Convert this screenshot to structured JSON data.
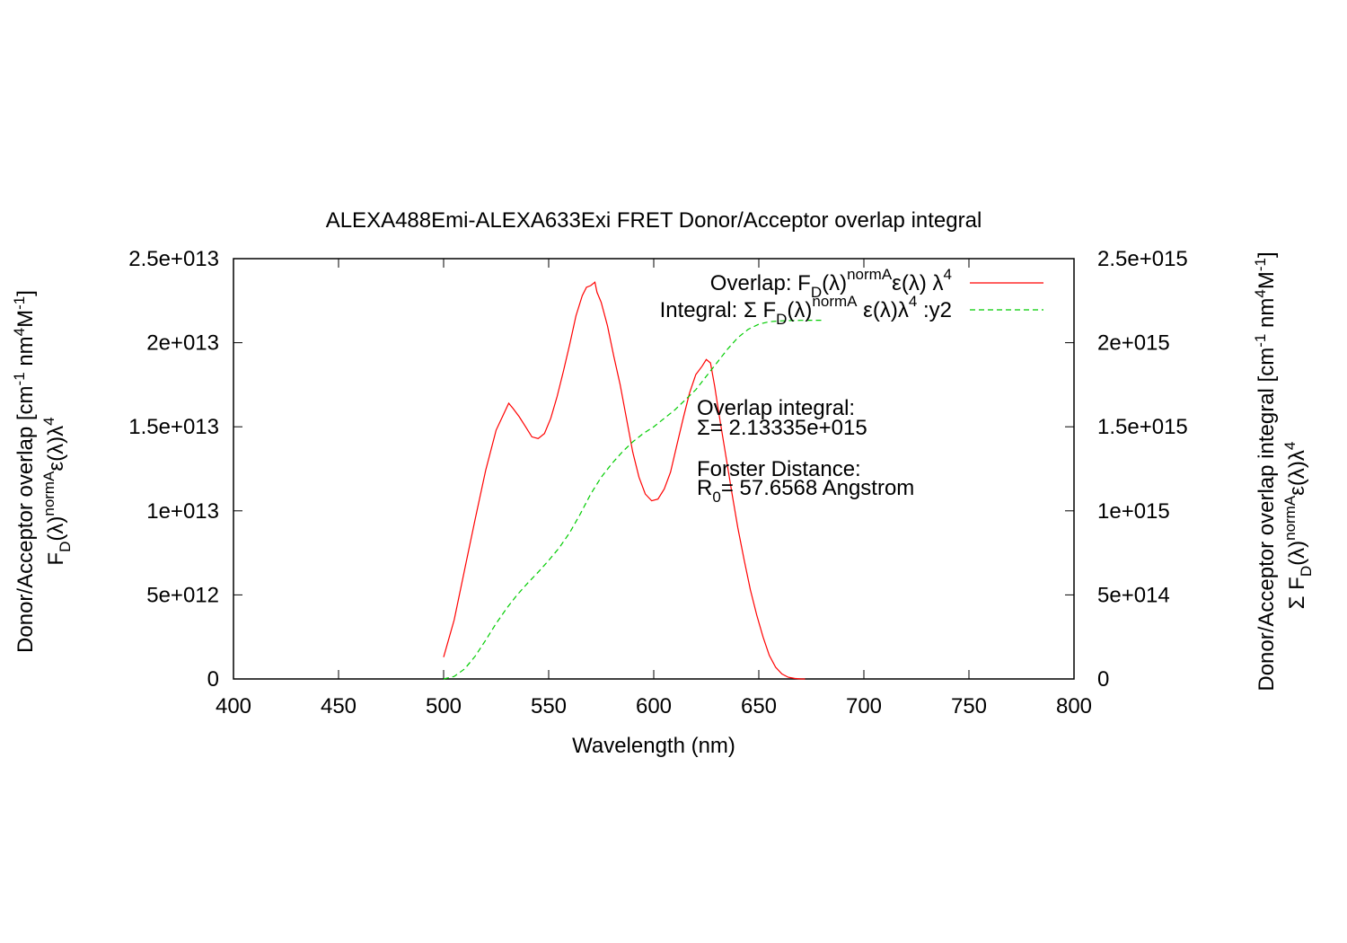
{
  "colors": {
    "background": "#ffffff",
    "axis": "#000000",
    "overlap_series": "#ff0000",
    "integral_series": "#00cc00"
  },
  "chart_data": {
    "type": "line",
    "title": "ALEXA488Emi-ALEXA633Exi FRET Donor/Acceptor overlap integral",
    "xlabel": "Wavelength (nm)",
    "ylabel_left": {
      "line1": "Donor/Acceptor overlap [cm",
      "line1_sup1": "-1",
      "line1_mid": " nm",
      "line1_sup2": "4",
      "line1_end": "M",
      "line1_sup3": "-1",
      "line1_close": "]",
      "line2_main": "F",
      "line2_sub": "D",
      "line2_after": "(λ)",
      "line2_sup": "normA",
      "line2_eps": "ε(λ)λ",
      "line2_sup2": "4"
    },
    "ylabel_right": {
      "line1": "Donor/Acceptor overlap integral [cm",
      "line1_sup1": "-1",
      "line1_mid": " nm",
      "line1_sup2": "4",
      "line1_end": "M",
      "line1_sup3": "-1",
      "line1_close": "]",
      "line2_main": "Σ F",
      "line2_sub": "D",
      "line2_after": "(λ)",
      "line2_sup": "normA",
      "line2_eps": "ε(λ)λ",
      "line2_sup2": "4"
    },
    "xlim": [
      400,
      800
    ],
    "ylim_left": [
      0,
      25000000000000.0
    ],
    "ylim_right": [
      0,
      2500000000000000.0
    ],
    "x_ticks": [
      400,
      450,
      500,
      550,
      600,
      650,
      700,
      750,
      800
    ],
    "x_tick_labels": [
      "400",
      "450",
      "500",
      "550",
      "600",
      "650",
      "700",
      "750",
      "800"
    ],
    "y_left_ticks": [
      0,
      5000000000000.0,
      10000000000000.0,
      15000000000000.0,
      20000000000000.0,
      25000000000000.0
    ],
    "y_left_tick_labels": [
      "0",
      "5e+012",
      "1e+013",
      "1.5e+013",
      "2e+013",
      "2.5e+013"
    ],
    "y_right_ticks": [
      0,
      500000000000000.0,
      1000000000000000.0,
      1500000000000000.0,
      2000000000000000.0,
      2500000000000000.0
    ],
    "y_right_tick_labels": [
      "0",
      "5e+014",
      "1e+015",
      "1.5e+015",
      "2e+015",
      "2.5e+015"
    ],
    "grid": false,
    "legend_position": "top-right",
    "series": [
      {
        "name": "Overlap",
        "axis": "left",
        "style": "solid",
        "legend": {
          "pre": "Overlap: F",
          "sub": "D",
          "mid": "(λ)",
          "sup": "normA",
          "eps": "ε(λ) λ",
          "sup2": "4"
        },
        "x": [
          500,
          505,
          510,
          515,
          520,
          525,
          528,
          531,
          533,
          536,
          539,
          542,
          545,
          548,
          551,
          554,
          557,
          560,
          563,
          566,
          568,
          570,
          572,
          573,
          575,
          578,
          581,
          584,
          587,
          590,
          593,
          596,
          599,
          602,
          605,
          608,
          611,
          614,
          617,
          620,
          623,
          625,
          627,
          629,
          631,
          634,
          637,
          640,
          643,
          646,
          649,
          652,
          655,
          658,
          661,
          664,
          667,
          670,
          672
        ],
        "y": [
          1300000000000.0,
          3500000000000.0,
          6500000000000.0,
          9500000000000.0,
          12400000000000.0,
          14800000000000.0,
          15600000000000.0,
          16400000000000.0,
          16100000000000.0,
          15600000000000.0,
          15000000000000.0,
          14400000000000.0,
          14300000000000.0,
          14600000000000.0,
          15500000000000.0,
          16800000000000.0,
          18300000000000.0,
          19900000000000.0,
          21600000000000.0,
          22800000000000.0,
          23300000000000.0,
          23400000000000.0,
          23600000000000.0,
          23000000000000.0,
          22400000000000.0,
          21000000000000.0,
          19200000000000.0,
          17500000000000.0,
          15500000000000.0,
          13500000000000.0,
          12000000000000.0,
          11000000000000.0,
          10600000000000.0,
          10700000000000.0,
          11300000000000.0,
          12300000000000.0,
          13900000000000.0,
          15500000000000.0,
          17000000000000.0,
          18100000000000.0,
          18600000000000.0,
          19000000000000.0,
          18800000000000.0,
          17400000000000.0,
          15800000000000.0,
          13500000000000.0,
          11200000000000.0,
          9000000000000.0,
          7100000000000.0,
          5300000000000.0,
          3800000000000.0,
          2500000000000.0,
          1400000000000.0,
          700000000000.0,
          300000000000.0,
          100000000000.0,
          30000000000.0,
          0,
          0
        ]
      },
      {
        "name": "Integral",
        "axis": "right",
        "style": "dashed",
        "legend": {
          "pre": "Integral: Σ F",
          "sub": "D",
          "mid": "(λ)",
          "sup": "normA",
          "eps": " ε(λ)λ",
          "sup2": "4",
          "post": " :y2"
        },
        "x": [
          500,
          505,
          510,
          515,
          520,
          525,
          530,
          535,
          540,
          545,
          550,
          555,
          560,
          565,
          570,
          575,
          580,
          585,
          590,
          595,
          600,
          605,
          610,
          615,
          620,
          625,
          630,
          635,
          640,
          645,
          650,
          655,
          660,
          665,
          670,
          675,
          680
        ],
        "y": [
          0,
          15000000000000.0,
          60000000000000.0,
          135000000000000.0,
          230000000000000.0,
          330000000000000.0,
          420000000000000.0,
          500000000000000.0,
          570000000000000.0,
          635000000000000.0,
          705000000000000.0,
          780000000000000.0,
          870000000000000.0,
          980000000000000.0,
          1100000000000000.0,
          1200000000000000.0,
          1280000000000000.0,
          1350000000000000.0,
          1410000000000000.0,
          1460000000000000.0,
          1500000000000000.0,
          1550000000000000.0,
          1600000000000000.0,
          1660000000000000.0,
          1720000000000000.0,
          1800000000000000.0,
          1880000000000000.0,
          1960000000000000.0,
          2030000000000000.0,
          2080000000000000.0,
          2110000000000000.0,
          2125000000000000.0,
          2130000000000000.0,
          2132000000000000.0,
          2133000000000000.0,
          2133300000000000.0,
          2133300000000000.0
        ]
      }
    ],
    "annotations": {
      "overlap_title": "Overlap integral:",
      "overlap_value": "Σ= 2.13335e+015",
      "forster_title": "Forster Distance:",
      "forster_r": "R",
      "forster_sub": "0",
      "forster_value": "= 57.6568 Angstrom"
    }
  }
}
